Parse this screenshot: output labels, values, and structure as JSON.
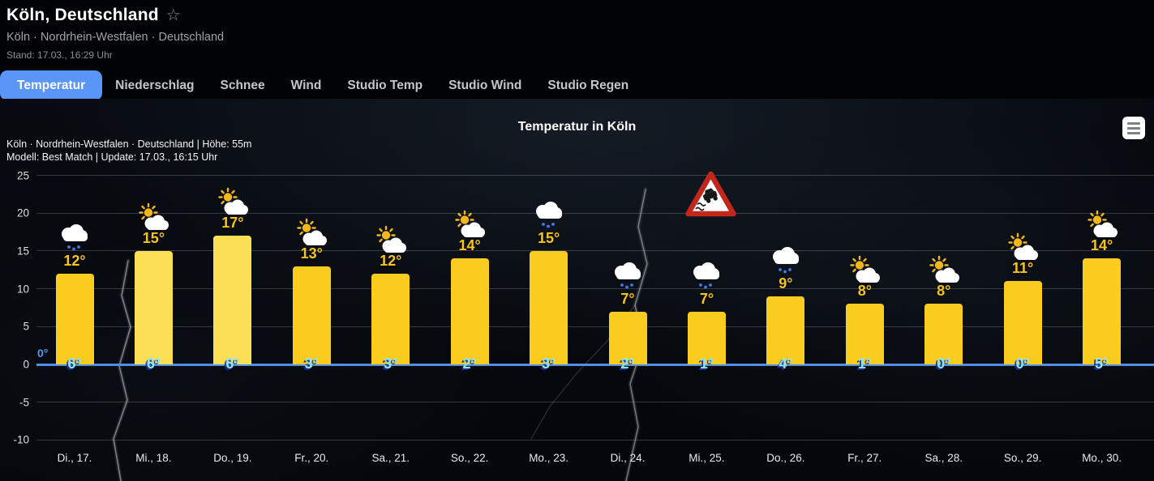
{
  "header": {
    "title": "Köln, Deutschland",
    "favorite_icon": "star-outline",
    "subtitle": "Köln · Nordrhein-Westfalen · Deutschland",
    "status": "Stand: 17.03., 16:29 Uhr"
  },
  "tabs": [
    {
      "label": "Temperatur",
      "active": true
    },
    {
      "label": "Niederschlag",
      "active": false
    },
    {
      "label": "Schnee",
      "active": false
    },
    {
      "label": "Wind",
      "active": false
    },
    {
      "label": "Studio Temp",
      "active": false
    },
    {
      "label": "Studio Wind",
      "active": false
    },
    {
      "label": "Studio Regen",
      "active": false
    }
  ],
  "chart": {
    "title": "Temperatur in Köln",
    "meta_line1": "Köln · Nordrhein-Westfalen · Deutschland | Höhe: 55m",
    "meta_line2": "Modell: Best Match | Update: 17.03., 16:15 Uhr",
    "zero_line_label": "0°",
    "menu_icon": "hamburger-menu",
    "warning_icon": "slippery-road-warning-sign"
  },
  "chart_data": {
    "type": "bar",
    "title": "Temperatur in Köln",
    "categories": [
      "Di., 17.",
      "Mi., 18.",
      "Do., 19.",
      "Fr., 20.",
      "Sa., 21.",
      "So., 22.",
      "Mo., 23.",
      "Di., 24.",
      "Mi., 25.",
      "Do., 26.",
      "Fr., 27.",
      "Sa., 28.",
      "So., 29.",
      "Mo., 30."
    ],
    "series": [
      {
        "name": "max_temperature",
        "values": [
          12,
          15,
          17,
          13,
          12,
          14,
          15,
          7,
          7,
          9,
          8,
          8,
          11,
          14
        ]
      },
      {
        "name": "min_temperature",
        "values": [
          6,
          6,
          6,
          3,
          3,
          2,
          3,
          2,
          1,
          4,
          1,
          0,
          0,
          5
        ]
      }
    ],
    "unit": "°",
    "weather_icons": [
      "rain",
      "partly-sunny",
      "partly-sunny",
      "partly-sunny",
      "partly-sunny",
      "partly-sunny",
      "rain",
      "rain",
      "rain",
      "rain",
      "partly-sunny",
      "partly-sunny",
      "partly-sunny",
      "partly-sunny"
    ],
    "bar_palette": {
      "default": "#FACC1E",
      "bright": "#FDDF55"
    },
    "bar_color_keys": [
      "default",
      "bright",
      "bright",
      "default",
      "default",
      "default",
      "default",
      "default",
      "default",
      "default",
      "default",
      "default",
      "default",
      "default"
    ],
    "ylim": [
      -10,
      25
    ],
    "yticks": [
      25,
      20,
      15,
      10,
      5,
      0,
      -5,
      -10
    ],
    "grid": true,
    "legend": "none",
    "zero_line_color": "#4E90E8",
    "max_label_color": "#F7C41C",
    "min_label_color": "#8BE6F6",
    "warning_icon_index": 8
  }
}
